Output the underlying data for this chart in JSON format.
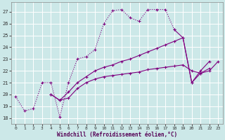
{
  "xlabel": "Windchill (Refroidissement éolien,°C)",
  "bg_color": "#cce8e8",
  "line_color": "#800080",
  "grid_color": "#ffffff",
  "xmin": -0.5,
  "xmax": 23.5,
  "ymin": 17.5,
  "ymax": 27.8,
  "yticks": [
    18,
    19,
    20,
    21,
    22,
    23,
    24,
    25,
    26,
    27
  ],
  "xticks": [
    0,
    1,
    2,
    3,
    4,
    5,
    6,
    7,
    8,
    9,
    10,
    11,
    12,
    13,
    14,
    15,
    16,
    17,
    18,
    19,
    20,
    21,
    22,
    23
  ],
  "line1_x": [
    0,
    1,
    2,
    3,
    4,
    5,
    6,
    7,
    8,
    9,
    10,
    11,
    12,
    13,
    14,
    15,
    16,
    17,
    18
  ],
  "line1_y": [
    19.8,
    18.6,
    18.8,
    21.0,
    21.0,
    18.1,
    21.0,
    23.0,
    23.2,
    23.8,
    26.0,
    27.1,
    27.2,
    26.5,
    26.2,
    27.2,
    27.2,
    27.2,
    25.5
  ],
  "line2_x": [
    18,
    19,
    20,
    21,
    22
  ],
  "line2_y": [
    25.5,
    24.8,
    21.0,
    22.0,
    22.8
  ],
  "line3_x": [
    4,
    5,
    6,
    7,
    8,
    9,
    10,
    11,
    12,
    13,
    14,
    15,
    16,
    17,
    18,
    19,
    20,
    21,
    22,
    23
  ],
  "line3_y": [
    20.0,
    19.5,
    19.7,
    20.5,
    21.0,
    21.3,
    21.5,
    21.6,
    21.7,
    21.8,
    21.9,
    22.1,
    22.2,
    22.3,
    22.4,
    22.5,
    22.0,
    21.8,
    22.0,
    22.8
  ],
  "line4_x": [
    4,
    5,
    6,
    7,
    8,
    9,
    10,
    11,
    12,
    13,
    14,
    15,
    16,
    17,
    18,
    19,
    20,
    21,
    22
  ],
  "line4_y": [
    20.0,
    19.5,
    20.2,
    21.0,
    21.5,
    22.0,
    22.3,
    22.5,
    22.8,
    23.0,
    23.3,
    23.6,
    23.9,
    24.2,
    24.5,
    24.8,
    21.0,
    21.8,
    22.2
  ]
}
